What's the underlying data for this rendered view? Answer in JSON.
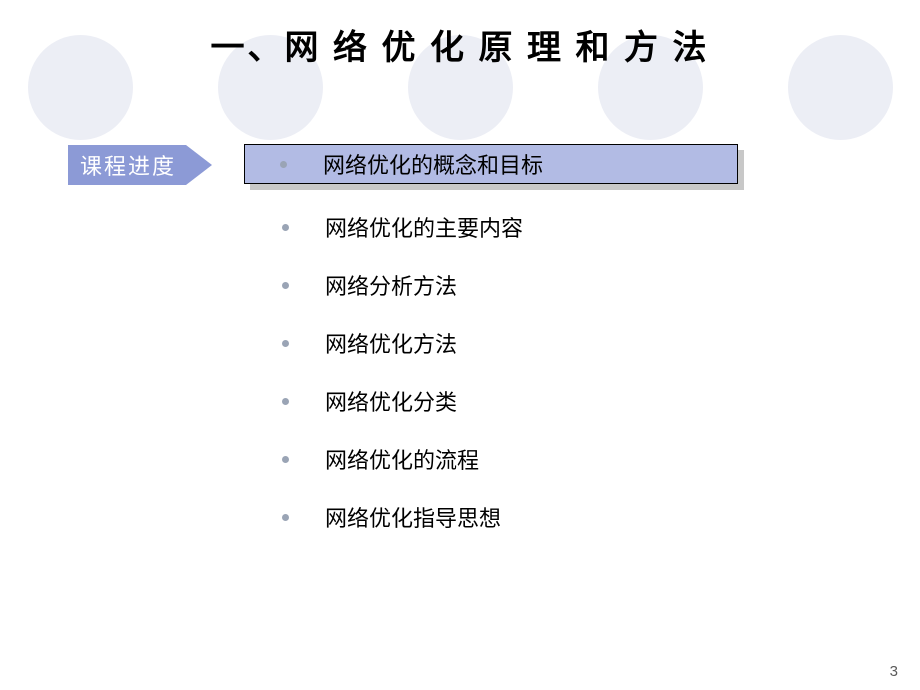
{
  "colors": {
    "circle": "#eceef5",
    "arrow": "#8c9ad6",
    "highlight_fill": "#b2bbe4",
    "highlight_shadow": "#c8c8c8",
    "bullet": "#9aa4b5",
    "title": "#000000"
  },
  "title": {
    "text": "一、网 络 优 化 原 理 和 方 法",
    "fontsize": 34,
    "letter_spacing": 3
  },
  "arrow_label": "课程进度",
  "items": [
    {
      "text": "网络优化的概念和目标",
      "highlighted": true
    },
    {
      "text": "网络优化的主要内容",
      "highlighted": false
    },
    {
      "text": "网络分析方法",
      "highlighted": false
    },
    {
      "text": "网络优化方法",
      "highlighted": false
    },
    {
      "text": "网络优化分类",
      "highlighted": false
    },
    {
      "text": "网络优化的流程",
      "highlighted": false
    },
    {
      "text": "网络优化指导思想",
      "highlighted": false
    }
  ],
  "page_number": "3",
  "circle_count": 5
}
